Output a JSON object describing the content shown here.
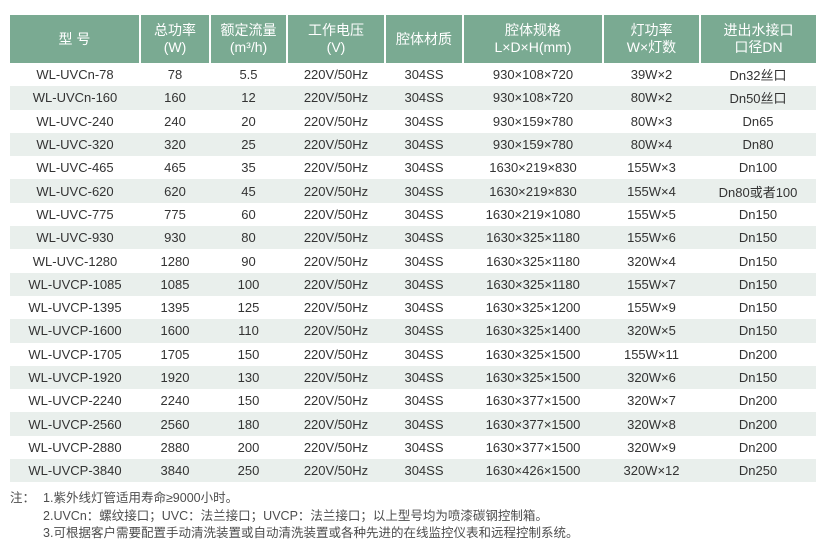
{
  "colors": {
    "header_bg": "#7aaa92",
    "header_text": "#ffffff",
    "stripe_bg": "#e9efec",
    "body_text": "#333333",
    "note_text": "#4d4d4d"
  },
  "table": {
    "columns": [
      {
        "id": "model",
        "lines": [
          "型 号"
        ]
      },
      {
        "id": "total-power",
        "lines": [
          "总功率",
          "(W)"
        ]
      },
      {
        "id": "rated-flow",
        "lines": [
          "额定流量",
          "(m³/h)"
        ]
      },
      {
        "id": "working-voltage",
        "lines": [
          "工作电压",
          "(V)"
        ]
      },
      {
        "id": "chamber-material",
        "lines": [
          "腔体材质"
        ]
      },
      {
        "id": "chamber-size",
        "lines": [
          "腔体规格",
          "L×D×H(mm)"
        ]
      },
      {
        "id": "lamp-power",
        "lines": [
          "灯功率",
          "W×灯数"
        ]
      },
      {
        "id": "port-diameter",
        "lines": [
          "进出水接口",
          "口径DN"
        ]
      }
    ],
    "rows": [
      [
        "WL-UVCn-78",
        "78",
        "5.5",
        "220V/50Hz",
        "304SS",
        "930×108×720",
        "39W×2",
        "Dn32丝口"
      ],
      [
        "WL-UVCn-160",
        "160",
        "12",
        "220V/50Hz",
        "304SS",
        "930×108×720",
        "80W×2",
        "Dn50丝口"
      ],
      [
        "WL-UVC-240",
        "240",
        "20",
        "220V/50Hz",
        "304SS",
        "930×159×780",
        "80W×3",
        "Dn65"
      ],
      [
        "WL-UVC-320",
        "320",
        "25",
        "220V/50Hz",
        "304SS",
        "930×159×780",
        "80W×4",
        "Dn80"
      ],
      [
        "WL-UVC-465",
        "465",
        "35",
        "220V/50Hz",
        "304SS",
        "1630×219×830",
        "155W×3",
        "Dn100"
      ],
      [
        "WL-UVC-620",
        "620",
        "45",
        "220V/50Hz",
        "304SS",
        "1630×219×830",
        "155W×4",
        "Dn80或者100"
      ],
      [
        "WL-UVC-775",
        "775",
        "60",
        "220V/50Hz",
        "304SS",
        "1630×219×1080",
        "155W×5",
        "Dn150"
      ],
      [
        "WL-UVC-930",
        "930",
        "80",
        "220V/50Hz",
        "304SS",
        "1630×325×1180",
        "155W×6",
        "Dn150"
      ],
      [
        "WL-UVC-1280",
        "1280",
        "90",
        "220V/50Hz",
        "304SS",
        "1630×325×1180",
        "320W×4",
        "Dn150"
      ],
      [
        "WL-UVCP-1085",
        "1085",
        "100",
        "220V/50Hz",
        "304SS",
        "1630×325×1180",
        "155W×7",
        "Dn150"
      ],
      [
        "WL-UVCP-1395",
        "1395",
        "125",
        "220V/50Hz",
        "304SS",
        "1630×325×1200",
        "155W×9",
        "Dn150"
      ],
      [
        "WL-UVCP-1600",
        "1600",
        "110",
        "220V/50Hz",
        "304SS",
        "1630×325×1400",
        "320W×5",
        "Dn150"
      ],
      [
        "WL-UVCP-1705",
        "1705",
        "150",
        "220V/50Hz",
        "304SS",
        "1630×325×1500",
        "155W×11",
        "Dn200"
      ],
      [
        "WL-UVCP-1920",
        "1920",
        "130",
        "220V/50Hz",
        "304SS",
        "1630×325×1500",
        "320W×6",
        "Dn150"
      ],
      [
        "WL-UVCP-2240",
        "2240",
        "150",
        "220V/50Hz",
        "304SS",
        "1630×377×1500",
        "320W×7",
        "Dn200"
      ],
      [
        "WL-UVCP-2560",
        "2560",
        "180",
        "220V/50Hz",
        "304SS",
        "1630×377×1500",
        "320W×8",
        "Dn200"
      ],
      [
        "WL-UVCP-2880",
        "2880",
        "200",
        "220V/50Hz",
        "304SS",
        "1630×377×1500",
        "320W×9",
        "Dn200"
      ],
      [
        "WL-UVCP-3840",
        "3840",
        "250",
        "220V/50Hz",
        "304SS",
        "1630×426×1500",
        "320W×12",
        "Dn250"
      ]
    ]
  },
  "notes": {
    "label": "注：",
    "items": [
      "1.紫外线灯管适用寿命≥9000小时。",
      "2.UVCn：螺纹接口；UVC：法兰接口；UVCP：法兰接口；以上型号均为喷漆碳钢控制箱。",
      "3.可根据客户需要配置手动清洗装置或自动清洗装置或各种先进的在线监控仪表和远程控制系统。"
    ]
  }
}
